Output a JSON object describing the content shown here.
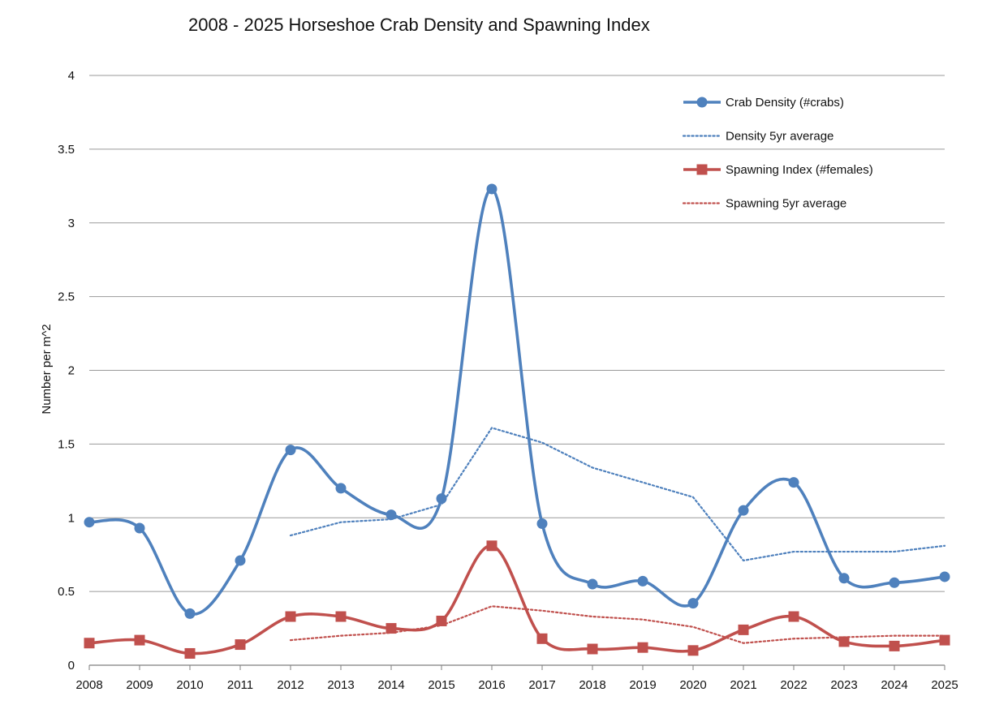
{
  "chart_data": {
    "type": "line",
    "title": "2008 - 2025 Horseshoe Crab Density and Spawning Index",
    "xlabel": "",
    "ylabel": "Number per m^2",
    "x": [
      2008,
      2009,
      2010,
      2011,
      2012,
      2013,
      2014,
      2015,
      2016,
      2017,
      2018,
      2019,
      2020,
      2021,
      2022,
      2023,
      2024,
      2025
    ],
    "ylim": [
      0,
      4
    ],
    "yticks": [
      0,
      0.5,
      1,
      1.5,
      2,
      2.5,
      3,
      3.5,
      4
    ],
    "ytick_labels": [
      "0",
      "0.5",
      "1",
      "1.5",
      "2",
      "2.5",
      "3",
      "3.5",
      "4"
    ],
    "grid": true,
    "legend_position": "top-right",
    "series": [
      {
        "name": "Crab Density (#crabs)",
        "style": "solid-smooth",
        "marker": "circle",
        "color": "#4f81bd",
        "values": [
          0.97,
          0.93,
          0.35,
          0.71,
          1.46,
          1.2,
          1.02,
          1.13,
          3.23,
          0.96,
          0.55,
          0.57,
          0.42,
          1.05,
          1.24,
          0.59,
          0.56,
          0.6
        ]
      },
      {
        "name": "Density 5yr average",
        "style": "dotted",
        "marker": "none",
        "color": "#4f81bd",
        "values": [
          null,
          null,
          null,
          null,
          0.88,
          0.97,
          0.99,
          1.09,
          1.61,
          1.51,
          1.34,
          1.24,
          1.14,
          0.71,
          0.77,
          0.77,
          0.77,
          0.81
        ]
      },
      {
        "name": "Spawning Index (#females)",
        "style": "solid-smooth",
        "marker": "square",
        "color": "#c0504d",
        "values": [
          0.15,
          0.17,
          0.08,
          0.14,
          0.33,
          0.33,
          0.25,
          0.3,
          0.81,
          0.18,
          0.11,
          0.12,
          0.1,
          0.24,
          0.33,
          0.16,
          0.13,
          0.17
        ]
      },
      {
        "name": "Spawning 5yr average",
        "style": "dotted",
        "marker": "none",
        "color": "#c0504d",
        "values": [
          null,
          null,
          null,
          null,
          0.17,
          0.2,
          0.22,
          0.27,
          0.4,
          0.37,
          0.33,
          0.31,
          0.26,
          0.15,
          0.18,
          0.19,
          0.2,
          0.2
        ]
      }
    ]
  }
}
